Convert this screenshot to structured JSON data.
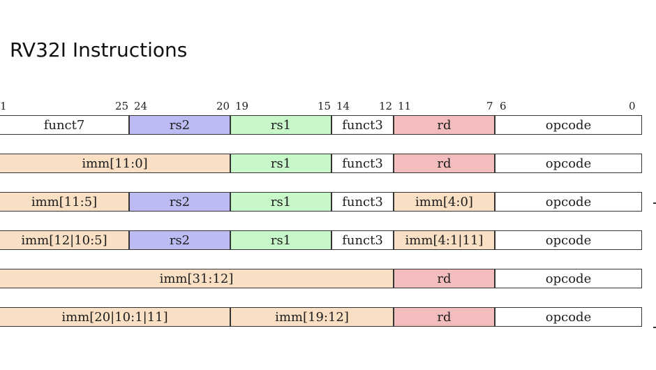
{
  "title": "RV32I Instructions",
  "colors": {
    "white": "#ffffff",
    "imm": "#f9dfc4",
    "rs2": "#bcbcf2",
    "rs1": "#c8f7c9",
    "rd": "#f4bdbd"
  },
  "bit_numbers": [
    "1",
    "25",
    "24",
    "20",
    "19",
    "15",
    "14",
    "12",
    "11",
    "7",
    "6",
    "0"
  ],
  "rows": [
    {
      "fields": [
        {
          "label": "funct7",
          "color": "white"
        },
        {
          "label": "rs2",
          "color": "rs2"
        },
        {
          "label": "rs1",
          "color": "rs1"
        },
        {
          "label": "funct3",
          "color": "white"
        },
        {
          "label": "rd",
          "color": "rd"
        },
        {
          "label": "opcode",
          "color": "white"
        }
      ]
    },
    {
      "fields": [
        {
          "label": "imm[11:0]",
          "color": "imm"
        },
        {
          "label": "rs1",
          "color": "rs1"
        },
        {
          "label": "funct3",
          "color": "white"
        },
        {
          "label": "rd",
          "color": "rd"
        },
        {
          "label": "opcode",
          "color": "white"
        }
      ]
    },
    {
      "fields": [
        {
          "label": "imm[11:5]",
          "color": "imm"
        },
        {
          "label": "rs2",
          "color": "rs2"
        },
        {
          "label": "rs1",
          "color": "rs1"
        },
        {
          "label": "funct3",
          "color": "white"
        },
        {
          "label": "imm[4:0]",
          "color": "imm"
        },
        {
          "label": "opcode",
          "color": "white"
        }
      ]
    },
    {
      "fields": [
        {
          "label": "imm[12|10:5]",
          "color": "imm"
        },
        {
          "label": "rs2",
          "color": "rs2"
        },
        {
          "label": "rs1",
          "color": "rs1"
        },
        {
          "label": "funct3",
          "color": "white"
        },
        {
          "label": "imm[4:1|11]",
          "color": "imm"
        },
        {
          "label": "opcode",
          "color": "white"
        }
      ]
    },
    {
      "fields": [
        {
          "label": "imm[31:12]",
          "color": "imm"
        },
        {
          "label": "rd",
          "color": "rd"
        },
        {
          "label": "opcode",
          "color": "white"
        }
      ]
    },
    {
      "fields": [
        {
          "label": "imm[20|10:1|11]",
          "color": "imm"
        },
        {
          "label": "imm[19:12]",
          "color": "imm"
        },
        {
          "label": "rd",
          "color": "rd"
        },
        {
          "label": "opcode",
          "color": "white"
        }
      ]
    }
  ]
}
